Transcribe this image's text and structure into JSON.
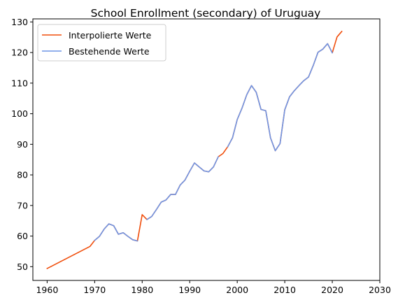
{
  "chart_data": {
    "type": "line",
    "title": "School Enrollment (secondary) of Uruguay",
    "xlabel": "",
    "ylabel": "",
    "xlim": [
      1957,
      2030
    ],
    "ylim": [
      45.5,
      131
    ],
    "x_ticks": [
      1960,
      1970,
      1980,
      1990,
      2000,
      2010,
      2020,
      2030
    ],
    "y_ticks": [
      50,
      60,
      70,
      80,
      90,
      100,
      110,
      120,
      130
    ],
    "grid": false,
    "legend_position": "top-left",
    "series": [
      {
        "name": "Interpolierte Werte",
        "color": "#f04e0c",
        "x": [
          1960,
          1961,
          1962,
          1963,
          1964,
          1965,
          1966,
          1967,
          1968,
          1969,
          1970,
          1971,
          1972,
          1973,
          1974,
          1975,
          1976,
          1977,
          1978,
          1979,
          1980,
          1981,
          1982,
          1983,
          1984,
          1985,
          1986,
          1987,
          1988,
          1989,
          1990,
          1991,
          1992,
          1993,
          1994,
          1995,
          1996,
          1997,
          1998,
          1999,
          2000,
          2001,
          2002,
          2003,
          2004,
          2005,
          2006,
          2007,
          2008,
          2009,
          2010,
          2011,
          2012,
          2013,
          2014,
          2015,
          2016,
          2017,
          2018,
          2019,
          2020,
          2021,
          2022
        ],
        "values": [
          49.4,
          50.2,
          51.0,
          51.8,
          52.6,
          53.4,
          54.2,
          55.0,
          55.8,
          56.6,
          58.6,
          59.9,
          62.3,
          64.0,
          63.4,
          60.6,
          61.1,
          59.9,
          58.8,
          58.4,
          67.0,
          65.4,
          66.4,
          68.7,
          71.1,
          71.8,
          73.6,
          73.6,
          76.7,
          78.3,
          81.2,
          83.9,
          82.6,
          81.3,
          81.0,
          82.6,
          85.9,
          87.0,
          89.2,
          92.1,
          98.1,
          101.8,
          106.2,
          109.2,
          107.0,
          101.4,
          101.0,
          92.1,
          87.9,
          90.2,
          101.3,
          105.5,
          107.5,
          109.2,
          110.8,
          112.0,
          115.8,
          120.1,
          121.1,
          122.9,
          119.9,
          125.1,
          126.9
        ]
      },
      {
        "name": "Bestehende Werte",
        "color": "#6f96e6",
        "segments": [
          {
            "x": [
              1970,
              1971,
              1972,
              1973,
              1974,
              1975,
              1976,
              1977,
              1978,
              1979
            ],
            "values": [
              58.6,
              59.9,
              62.3,
              64.0,
              63.4,
              60.6,
              61.1,
              59.9,
              58.8,
              58.4
            ]
          },
          {
            "x": [
              1981,
              1982,
              1983,
              1984,
              1985,
              1986,
              1987,
              1988,
              1989,
              1990,
              1991,
              1992,
              1993,
              1994,
              1995,
              1996
            ],
            "values": [
              65.4,
              66.4,
              68.7,
              71.1,
              71.8,
              73.6,
              73.6,
              76.7,
              78.3,
              81.2,
              83.9,
              82.6,
              81.3,
              81.0,
              82.6,
              85.9
            ]
          },
          {
            "x": [
              1998,
              1999,
              2000,
              2001,
              2002,
              2003,
              2004,
              2005,
              2006,
              2007,
              2008,
              2009,
              2010,
              2011,
              2012,
              2013,
              2014,
              2015,
              2016,
              2017,
              2018,
              2019,
              2020
            ],
            "values": [
              89.2,
              92.1,
              98.1,
              101.8,
              106.2,
              109.2,
              107.0,
              101.4,
              101.0,
              92.1,
              87.9,
              90.2,
              101.3,
              105.5,
              107.5,
              109.2,
              110.8,
              112.0,
              115.8,
              120.1,
              121.1,
              122.9,
              119.9
            ]
          }
        ]
      }
    ]
  }
}
